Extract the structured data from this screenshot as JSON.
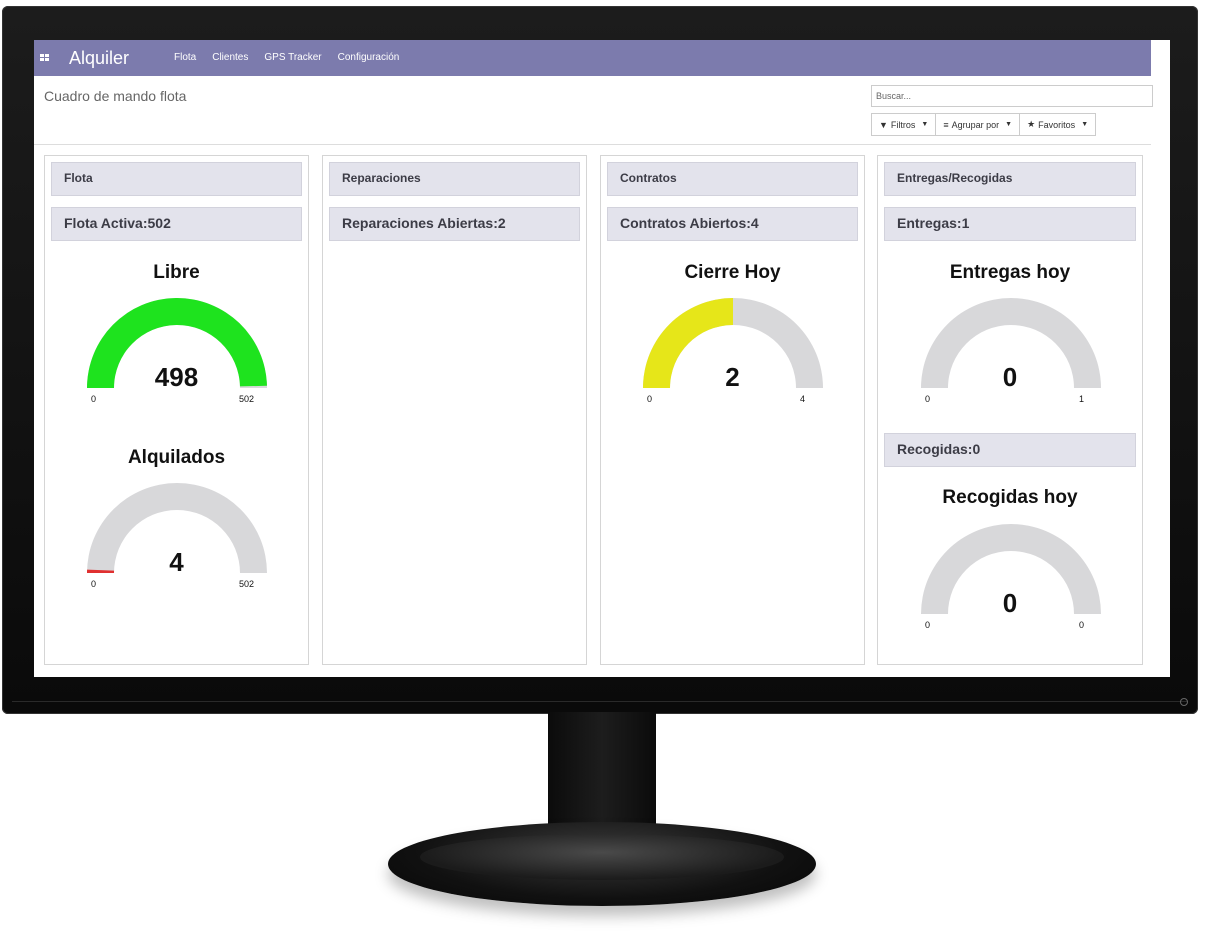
{
  "navbar": {
    "app_title": "Alquiler",
    "menu": [
      "Flota",
      "Clientes",
      "GPS Tracker",
      "Configuración"
    ]
  },
  "breadcrumb": "Cuadro de mando flota",
  "search": {
    "placeholder": "Buscar..."
  },
  "filters": {
    "filtros": "Filtros",
    "agrupar": "Agrupar por",
    "favoritos": "Favoritos"
  },
  "colors": {
    "navbar": "#7c7bad",
    "gauge_green": "#1ee31e",
    "gauge_yellow": "#e6e619",
    "gauge_red": "#e03030",
    "gauge_track": "#d8d8da"
  },
  "columns": {
    "flota": {
      "header": "Flota",
      "summary": "Flota Activa:502",
      "gauges": [
        {
          "title": "Libre",
          "value": "498",
          "min": "0",
          "max": "502",
          "fraction": 0.992,
          "color": "#1ee31e"
        },
        {
          "title": "Alquilados",
          "value": "4",
          "min": "0",
          "max": "502",
          "fraction": 0.008,
          "color": "#e03030"
        }
      ]
    },
    "reparaciones": {
      "header": "Reparaciones",
      "summary": "Reparaciones Abiertas:2"
    },
    "contratos": {
      "header": "Contratos",
      "summary": "Contratos Abiertos:4",
      "gauges": [
        {
          "title": "Cierre Hoy",
          "value": "2",
          "min": "0",
          "max": "4",
          "fraction": 0.5,
          "color": "#e6e619"
        }
      ]
    },
    "entregas": {
      "header": "Entregas/Recogidas",
      "summary": "Entregas:1",
      "summary2": "Recogidas:0",
      "gauges": [
        {
          "title": "Entregas hoy",
          "value": "0",
          "min": "0",
          "max": "1",
          "fraction": 0,
          "color": "#1ee31e"
        },
        {
          "title": "Recogidas hoy",
          "value": "0",
          "min": "0",
          "max": "0",
          "fraction": 0,
          "color": "#1ee31e"
        }
      ]
    }
  }
}
